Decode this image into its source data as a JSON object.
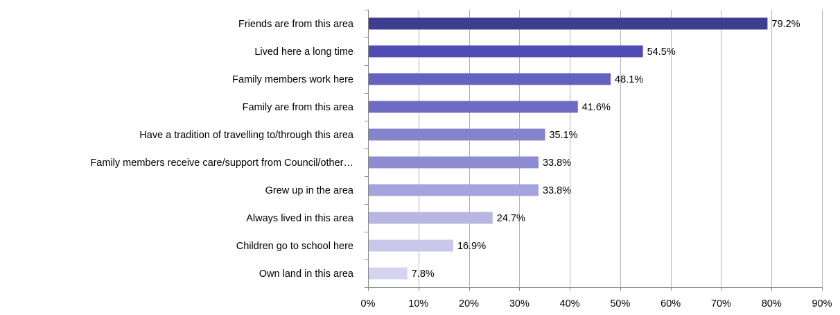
{
  "chart_data": {
    "type": "bar",
    "orientation": "horizontal",
    "categories": [
      "Friends are from this area",
      "Lived here a long time",
      "Family members work here",
      "Family are from this area",
      "Have a tradition of travelling to/through this area",
      "Family members receive care/support from Council/other…",
      "Grew up in the area",
      "Always lived in this area",
      "Children go to school here",
      "Own land in this area"
    ],
    "values": [
      79.2,
      54.5,
      48.1,
      41.6,
      35.1,
      33.8,
      33.8,
      24.7,
      16.9,
      7.8
    ],
    "data_labels": [
      "79.2%",
      "54.5%",
      "48.1%",
      "41.6%",
      "35.1%",
      "33.8%",
      "33.8%",
      "24.7%",
      "16.9%",
      "7.8%"
    ],
    "bar_colors": [
      "#3f3d8f",
      "#4f4db3",
      "#6462bf",
      "#6e6cc2",
      "#8583cc",
      "#8e8cd0",
      "#a5a3dc",
      "#b8b6e3",
      "#c9c8eb",
      "#d5d4f0"
    ],
    "xlim": [
      0,
      90
    ],
    "x_ticks": [
      0,
      10,
      20,
      30,
      40,
      50,
      60,
      70,
      80,
      90
    ],
    "x_tick_labels": [
      "0%",
      "10%",
      "20%",
      "30%",
      "40%",
      "50%",
      "60%",
      "70%",
      "80%",
      "90%"
    ],
    "grid": "vertical",
    "title": "",
    "xlabel": "",
    "ylabel": "",
    "legend": "none"
  }
}
